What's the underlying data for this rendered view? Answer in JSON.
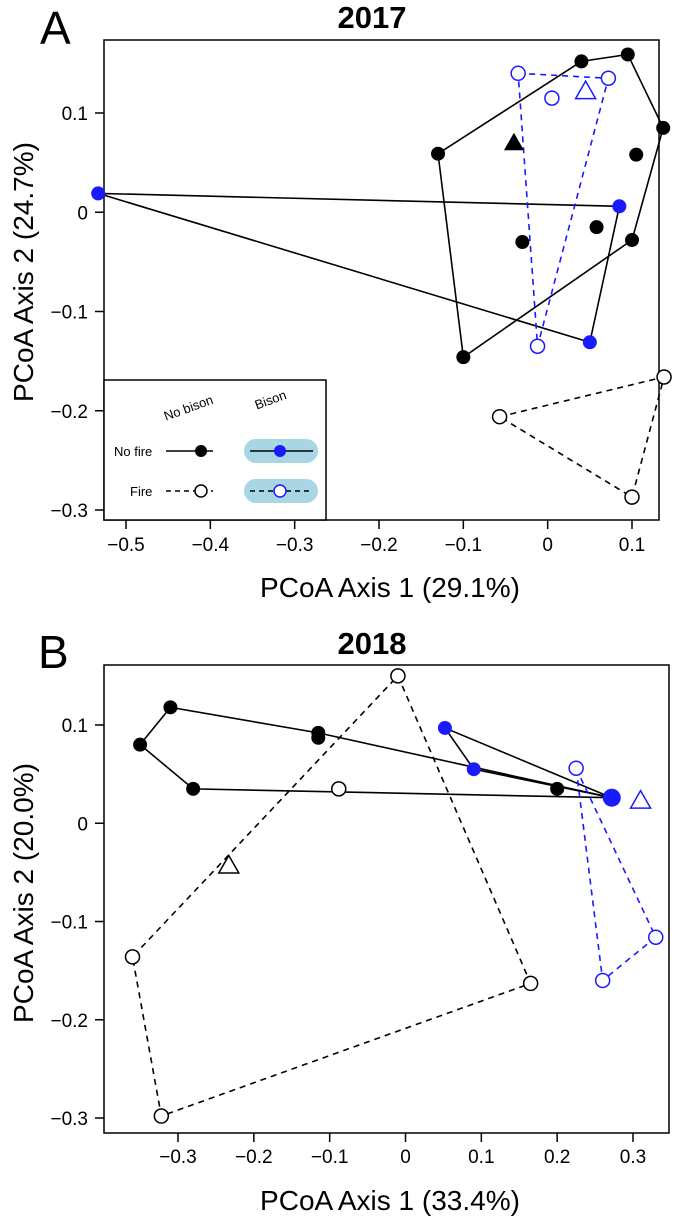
{
  "colors": {
    "black": "#000000",
    "blue": "#1a1aff",
    "legend_fill": "#a9d6e5"
  },
  "chart_data": [
    {
      "type": "scatter",
      "panel": "A",
      "title": "2017",
      "xlabel": "PCoA Axis 1 (29.1%)",
      "ylabel": "PCoA Axis 2 (24.7%)",
      "xlim": [
        -0.55,
        0.16
      ],
      "ylim": [
        -0.305,
        0.165
      ],
      "xticks": [
        -0.5,
        -0.4,
        -0.3,
        -0.2,
        -0.1,
        0,
        0.1
      ],
      "xtick_labels": [
        "−0.5",
        "−0.4",
        "−0.3",
        "−0.2",
        "−0.1",
        "0",
        "0.1"
      ],
      "yticks": [
        -0.3,
        -0.2,
        -0.1,
        0,
        0.1
      ],
      "ytick_labels": [
        "−0.3",
        "−0.2",
        "−0.1",
        "0",
        "0.1"
      ],
      "legend": {
        "col_labels": [
          "No bison",
          "Bison"
        ],
        "row_labels": [
          "No fire",
          "Fire"
        ],
        "placement": "bottom-left"
      },
      "groups": [
        {
          "key": "nofire_nobison",
          "fill": "black",
          "stroke": "black",
          "filled": true,
          "dashed": false,
          "hull": [
            [
              -0.13,
              0.059
            ],
            [
              0.04,
              0.152
            ],
            [
              0.095,
              0.159
            ],
            [
              0.137,
              0.085
            ],
            [
              0.1,
              -0.028
            ],
            [
              -0.1,
              -0.146
            ]
          ],
          "extra": [
            [
              0.105,
              0.058
            ],
            [
              0.058,
              -0.015
            ],
            [
              -0.03,
              -0.03
            ]
          ],
          "centroid": [
            -0.04,
            0.07
          ]
        },
        {
          "key": "nofire_bison",
          "fill": "blue",
          "stroke": "black",
          "filled": true,
          "dashed": false,
          "hull": [
            [
              -0.533,
              0.019
            ],
            [
              0.085,
              0.006
            ],
            [
              0.05,
              -0.131
            ]
          ],
          "extra": []
        },
        {
          "key": "fire_bison",
          "fill": "none",
          "stroke": "blue",
          "filled": false,
          "dashed": true,
          "hull": [
            [
              -0.035,
              0.14
            ],
            [
              0.072,
              0.135
            ],
            [
              -0.012,
              -0.135
            ]
          ],
          "extra": [
            [
              0.005,
              0.115
            ]
          ],
          "centroid": [
            0.045,
            0.122
          ]
        },
        {
          "key": "fire_nobison",
          "fill": "none",
          "stroke": "black",
          "filled": false,
          "dashed": true,
          "hull": [
            [
              -0.057,
              -0.206
            ],
            [
              0.138,
              -0.166
            ],
            [
              0.1,
              -0.287
            ]
          ],
          "extra": []
        }
      ]
    },
    {
      "type": "scatter",
      "panel": "B",
      "title": "2018",
      "xlabel": "PCoA Axis 1 (33.4%)",
      "ylabel": "PCoA Axis 2 (20.0%)",
      "xlim": [
        -0.385,
        0.345
      ],
      "ylim": [
        -0.305,
        0.165
      ],
      "xticks": [
        -0.3,
        -0.2,
        -0.1,
        0,
        0.1,
        0.2,
        0.3
      ],
      "xtick_labels": [
        "−0.3",
        "−0.2",
        "−0.1",
        "0",
        "0.1",
        "0.2",
        "0.3"
      ],
      "yticks": [
        -0.3,
        -0.2,
        -0.1,
        0,
        0.1
      ],
      "ytick_labels": [
        "−0.3",
        "−0.2",
        "−0.1",
        "0",
        "0.1"
      ],
      "groups": [
        {
          "key": "nofire_nobison",
          "fill": "black",
          "stroke": "black",
          "filled": true,
          "dashed": false,
          "hull": [
            [
              -0.35,
              0.08
            ],
            [
              -0.31,
              0.118
            ],
            [
              -0.115,
              0.092
            ],
            [
              0.272,
              0.026
            ],
            [
              -0.28,
              0.035
            ]
          ],
          "extra": [
            [
              -0.115,
              0.087
            ],
            [
              0.2,
              0.035
            ]
          ]
        },
        {
          "key": "nofire_bison",
          "fill": "blue",
          "stroke": "black",
          "filled": true,
          "dashed": false,
          "hull": [
            [
              0.052,
              0.097
            ],
            [
              0.272,
              0.026
            ],
            [
              0.09,
              0.055
            ]
          ],
          "extra": [],
          "centroid": [
            0.272,
            0.026
          ]
        },
        {
          "key": "fire_nobison",
          "fill": "none",
          "stroke": "black",
          "filled": false,
          "dashed": true,
          "hull": [
            [
              -0.01,
              0.15
            ],
            [
              0.165,
              -0.163
            ],
            [
              -0.322,
              -0.298
            ],
            [
              -0.36,
              -0.136
            ]
          ],
          "extra": [
            [
              -0.088,
              0.035
            ]
          ],
          "centroid": [
            -0.233,
            -0.043
          ]
        },
        {
          "key": "fire_bison",
          "fill": "none",
          "stroke": "blue",
          "filled": false,
          "dashed": true,
          "hull": [
            [
              0.225,
              0.056
            ],
            [
              0.33,
              -0.116
            ],
            [
              0.26,
              -0.16
            ]
          ],
          "extra": [],
          "centroid": [
            0.31,
            0.023
          ]
        }
      ]
    }
  ]
}
